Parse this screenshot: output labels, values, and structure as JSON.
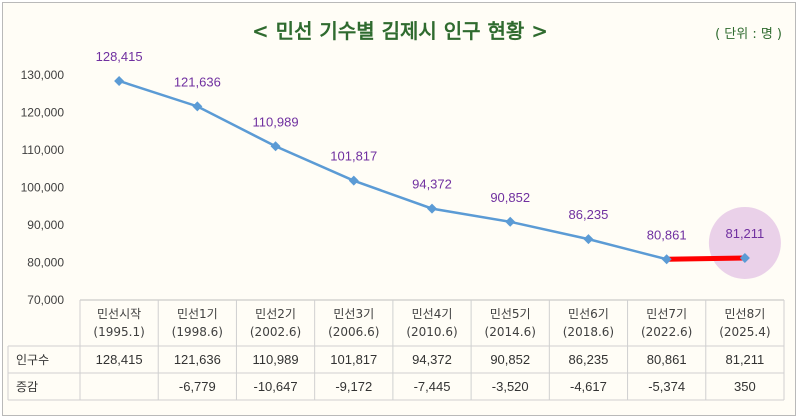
{
  "title": "< 민선 기수별 김제시 인구 현황 >",
  "unit": "( 단위 : 명 )",
  "colors": {
    "line": "#5b9bd5",
    "marker": "#5b9bd5",
    "label": "#7030a0",
    "highlight_segment": "#ff0000",
    "highlight_circle": "#e6c9e6",
    "title": "#2f6b2f",
    "background": "#fffdf6"
  },
  "chart_data": {
    "type": "line",
    "categories": [
      [
        "민선시작",
        "(1995.1)"
      ],
      [
        "민선1기",
        "(1998.6)"
      ],
      [
        "민선2기",
        "(2002.6)"
      ],
      [
        "민선3기",
        "(2006.6)"
      ],
      [
        "민선4기",
        "(2010.6)"
      ],
      [
        "민선5기",
        "(2014.6)"
      ],
      [
        "민선6기",
        "(2018.6)"
      ],
      [
        "민선7기",
        "(2022.6)"
      ],
      [
        "민선8기",
        "(2025.4)"
      ]
    ],
    "values": [
      128415,
      121636,
      110989,
      101817,
      94372,
      90852,
      86235,
      80861,
      81211
    ],
    "data_labels": [
      "128,415",
      "121,636",
      "110,989",
      "101,817",
      "94,372",
      "90,852",
      "86,235",
      "80,861",
      "81,211"
    ],
    "ylim": [
      70000,
      130000
    ],
    "yticks": [
      70000,
      80000,
      90000,
      100000,
      110000,
      120000,
      130000
    ],
    "ytick_labels": [
      "70,000",
      "80,000",
      "90,000",
      "100,000",
      "110,000",
      "120,000",
      "130,000"
    ],
    "grid": "vertical category separators",
    "highlight": {
      "from_index": 7,
      "to_index": 8,
      "circled_index": 8
    }
  },
  "table": {
    "row_labels": [
      "인구수",
      "증감"
    ],
    "population": [
      "128,415",
      "121,636",
      "110,989",
      "101,817",
      "94,372",
      "90,852",
      "86,235",
      "80,861",
      "81,211"
    ],
    "change": [
      "",
      "-6,779",
      "-10,647",
      "-9,172",
      "-7,445",
      "-3,520",
      "-4,617",
      "-5,374",
      "350"
    ]
  }
}
